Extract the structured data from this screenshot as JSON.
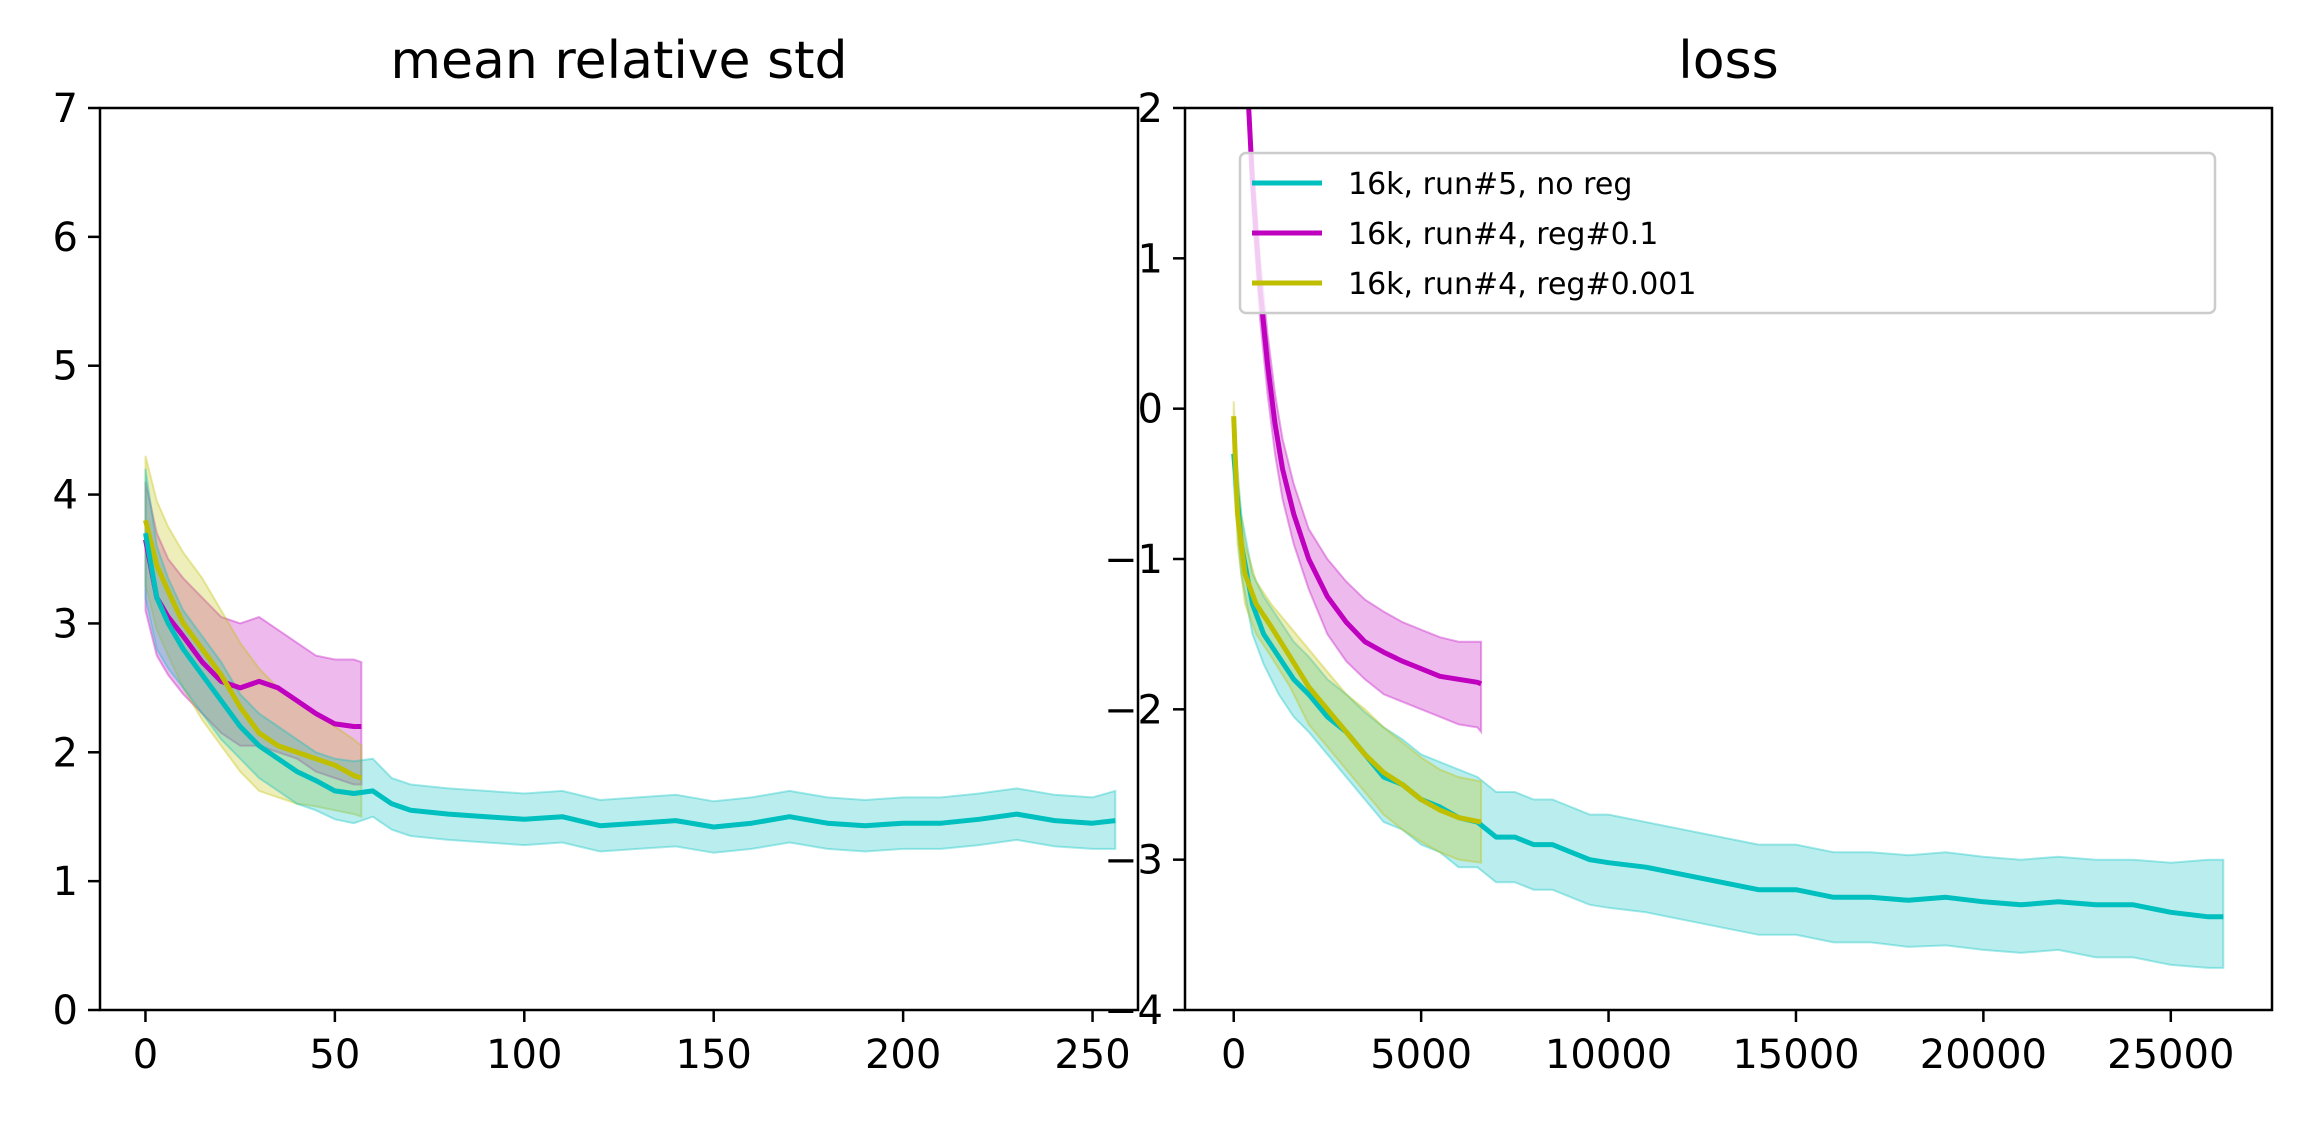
{
  "chart_data": [
    {
      "type": "line",
      "title": "mean relative std",
      "xlabel": "",
      "ylabel": "",
      "xlim": [
        -12,
        262
      ],
      "ylim": [
        0,
        7
      ],
      "x_ticks": [
        0,
        50,
        100,
        150,
        200,
        250
      ],
      "y_ticks": [
        0,
        1,
        2,
        3,
        4,
        5,
        6,
        7
      ],
      "grid": false,
      "legend": null,
      "series": [
        {
          "color": "#bf00bf",
          "line": {
            "x": [
              0,
              3,
              6,
              10,
              15,
              20,
              25,
              30,
              35,
              40,
              45,
              50,
              55,
              57
            ],
            "y": [
              3.65,
              3.2,
              3.05,
              2.9,
              2.7,
              2.55,
              2.5,
              2.55,
              2.5,
              2.4,
              2.3,
              2.22,
              2.2,
              2.2
            ]
          },
          "band": {
            "upper": [
              4.1,
              3.7,
              3.5,
              3.35,
              3.2,
              3.05,
              3.0,
              3.05,
              2.95,
              2.85,
              2.75,
              2.72,
              2.72,
              2.7
            ],
            "lower": [
              3.1,
              2.75,
              2.6,
              2.45,
              2.3,
              2.15,
              2.05,
              2.05,
              2.0,
              1.95,
              1.85,
              1.8,
              1.75,
              1.75
            ]
          }
        },
        {
          "color": "#bfbf00",
          "line": {
            "x": [
              0,
              3,
              6,
              10,
              15,
              20,
              25,
              30,
              35,
              40,
              45,
              50,
              55,
              57
            ],
            "y": [
              3.8,
              3.45,
              3.25,
              3.0,
              2.8,
              2.6,
              2.35,
              2.15,
              2.05,
              2.0,
              1.95,
              1.9,
              1.82,
              1.8
            ]
          },
          "band": {
            "upper": [
              4.3,
              3.95,
              3.75,
              3.55,
              3.35,
              3.1,
              2.85,
              2.65,
              2.5,
              2.4,
              2.3,
              2.2,
              2.1,
              2.05
            ],
            "lower": [
              3.3,
              2.95,
              2.75,
              2.5,
              2.25,
              2.05,
              1.85,
              1.7,
              1.65,
              1.6,
              1.58,
              1.55,
              1.52,
              1.5
            ]
          }
        },
        {
          "color": "#00bfbf",
          "line": {
            "x": [
              0,
              3,
              6,
              10,
              15,
              20,
              25,
              30,
              35,
              40,
              45,
              50,
              55,
              60,
              65,
              70,
              80,
              90,
              100,
              110,
              120,
              130,
              140,
              150,
              160,
              170,
              180,
              190,
              200,
              210,
              220,
              230,
              240,
              250,
              256
            ],
            "y": [
              3.7,
              3.2,
              3.0,
              2.8,
              2.6,
              2.4,
              2.2,
              2.05,
              1.95,
              1.85,
              1.78,
              1.7,
              1.68,
              1.7,
              1.6,
              1.55,
              1.52,
              1.5,
              1.48,
              1.5,
              1.43,
              1.45,
              1.47,
              1.42,
              1.45,
              1.5,
              1.45,
              1.43,
              1.45,
              1.45,
              1.48,
              1.52,
              1.47,
              1.45,
              1.47
            ]
          },
          "band": {
            "upper": [
              4.2,
              3.6,
              3.35,
              3.1,
              2.9,
              2.7,
              2.45,
              2.3,
              2.2,
              2.1,
              2.0,
              1.95,
              1.93,
              1.95,
              1.8,
              1.75,
              1.72,
              1.7,
              1.68,
              1.7,
              1.63,
              1.65,
              1.67,
              1.62,
              1.65,
              1.7,
              1.65,
              1.63,
              1.65,
              1.65,
              1.68,
              1.72,
              1.67,
              1.65,
              1.7
            ],
            "lower": [
              3.2,
              2.8,
              2.65,
              2.5,
              2.3,
              2.1,
              1.95,
              1.8,
              1.7,
              1.6,
              1.55,
              1.48,
              1.45,
              1.5,
              1.4,
              1.35,
              1.32,
              1.3,
              1.28,
              1.3,
              1.23,
              1.25,
              1.27,
              1.22,
              1.25,
              1.3,
              1.25,
              1.23,
              1.25,
              1.25,
              1.28,
              1.32,
              1.27,
              1.25,
              1.25
            ]
          }
        }
      ]
    },
    {
      "type": "line",
      "title": "loss",
      "xlabel": "",
      "ylabel": "",
      "xlim": [
        -1300,
        27700
      ],
      "ylim": [
        -4,
        2
      ],
      "x_ticks": [
        0,
        5000,
        10000,
        15000,
        20000,
        25000
      ],
      "y_ticks": [
        -4,
        -3,
        -2,
        -1,
        0,
        1,
        2
      ],
      "y_tick_labels": [
        "−4",
        "−3",
        "−2",
        "−1",
        "0",
        "1",
        "2"
      ],
      "grid": false,
      "legend": {
        "placement": "upper-center",
        "entries": [
          {
            "label": "16k, run#5, no reg",
            "color": "#00bfbf"
          },
          {
            "label": "16k, run#4, reg#0.1",
            "color": "#bf00bf"
          },
          {
            "label": "16k, run#4, reg#0.001",
            "color": "#bfbf00"
          }
        ]
      },
      "series": [
        {
          "name": "16k, run#5, no reg",
          "color": "#00bfbf",
          "line": {
            "x": [
              0,
              200,
              500,
              800,
              1200,
              1600,
              2000,
              2500,
              3000,
              3500,
              4000,
              4500,
              5000,
              5500,
              6000,
              6500,
              7000,
              7500,
              8000,
              8500,
              9000,
              9500,
              10000,
              11000,
              12000,
              13000,
              14000,
              15000,
              16000,
              17000,
              18000,
              19000,
              20000,
              21000,
              22000,
              23000,
              24000,
              25000,
              26000,
              26400
            ],
            "y": [
              -0.3,
              -0.9,
              -1.3,
              -1.5,
              -1.65,
              -1.8,
              -1.9,
              -2.05,
              -2.15,
              -2.3,
              -2.45,
              -2.5,
              -2.6,
              -2.65,
              -2.72,
              -2.75,
              -2.85,
              -2.85,
              -2.9,
              -2.9,
              -2.95,
              -3.0,
              -3.02,
              -3.05,
              -3.1,
              -3.15,
              -3.2,
              -3.2,
              -3.25,
              -3.25,
              -3.27,
              -3.25,
              -3.28,
              -3.3,
              -3.28,
              -3.3,
              -3.3,
              -3.35,
              -3.38,
              -3.38
            ]
          },
          "band": {
            "upper": [
              -0.1,
              -0.7,
              -1.1,
              -1.25,
              -1.4,
              -1.55,
              -1.65,
              -1.8,
              -1.9,
              -2.02,
              -2.12,
              -2.2,
              -2.3,
              -2.35,
              -2.4,
              -2.45,
              -2.55,
              -2.55,
              -2.6,
              -2.6,
              -2.65,
              -2.7,
              -2.7,
              -2.75,
              -2.8,
              -2.85,
              -2.9,
              -2.9,
              -2.95,
              -2.95,
              -2.97,
              -2.95,
              -2.98,
              -3.0,
              -2.98,
              -3.0,
              -3.0,
              -3.02,
              -3.0,
              -3.0
            ],
            "lower": [
              -0.5,
              -1.1,
              -1.5,
              -1.7,
              -1.9,
              -2.05,
              -2.15,
              -2.3,
              -2.45,
              -2.6,
              -2.75,
              -2.8,
              -2.9,
              -2.95,
              -3.05,
              -3.05,
              -3.15,
              -3.15,
              -3.2,
              -3.2,
              -3.25,
              -3.3,
              -3.32,
              -3.35,
              -3.4,
              -3.45,
              -3.5,
              -3.5,
              -3.55,
              -3.55,
              -3.58,
              -3.57,
              -3.6,
              -3.62,
              -3.6,
              -3.65,
              -3.65,
              -3.7,
              -3.72,
              -3.72
            ]
          }
        },
        {
          "name": "16k, run#4, reg#0.1",
          "color": "#bf00bf",
          "line": {
            "x": [
              400,
              500,
              700,
              900,
              1100,
              1300,
              1600,
              2000,
              2500,
              3000,
              3500,
              4000,
              4500,
              5000,
              5500,
              6000,
              6500,
              6600
            ],
            "y": [
              2.0,
              1.5,
              0.8,
              0.3,
              -0.1,
              -0.4,
              -0.7,
              -1.0,
              -1.25,
              -1.42,
              -1.55,
              -1.62,
              -1.68,
              -1.73,
              -1.78,
              -1.8,
              -1.82,
              -1.83
            ]
          },
          "band": {
            "upper": [
              2.0,
              1.7,
              1.0,
              0.5,
              0.1,
              -0.2,
              -0.5,
              -0.8,
              -1.0,
              -1.15,
              -1.27,
              -1.35,
              -1.42,
              -1.47,
              -1.52,
              -1.55,
              -1.55,
              -1.55
            ],
            "lower": [
              2.0,
              1.3,
              0.6,
              0.1,
              -0.3,
              -0.6,
              -0.9,
              -1.2,
              -1.5,
              -1.68,
              -1.8,
              -1.9,
              -1.95,
              -2.0,
              -2.05,
              -2.1,
              -2.12,
              -2.15
            ]
          }
        },
        {
          "name": "16k, run#4, reg#0.001",
          "color": "#bfbf00",
          "line": {
            "x": [
              0,
              100,
              300,
              600,
              1000,
              1500,
              2000,
              2500,
              3000,
              3500,
              4000,
              4500,
              5000,
              5500,
              6000,
              6600
            ],
            "y": [
              -0.05,
              -0.7,
              -1.1,
              -1.3,
              -1.45,
              -1.65,
              -1.85,
              -2.0,
              -2.15,
              -2.3,
              -2.42,
              -2.5,
              -2.6,
              -2.67,
              -2.72,
              -2.75
            ]
          },
          "band": {
            "upper": [
              0.05,
              -0.5,
              -0.9,
              -1.15,
              -1.3,
              -1.45,
              -1.6,
              -1.75,
              -1.9,
              -2.0,
              -2.12,
              -2.22,
              -2.32,
              -2.4,
              -2.45,
              -2.48
            ],
            "lower": [
              -0.15,
              -0.9,
              -1.3,
              -1.5,
              -1.65,
              -1.85,
              -2.1,
              -2.25,
              -2.4,
              -2.55,
              -2.7,
              -2.8,
              -2.88,
              -2.95,
              -3.0,
              -3.02
            ]
          }
        }
      ]
    }
  ]
}
